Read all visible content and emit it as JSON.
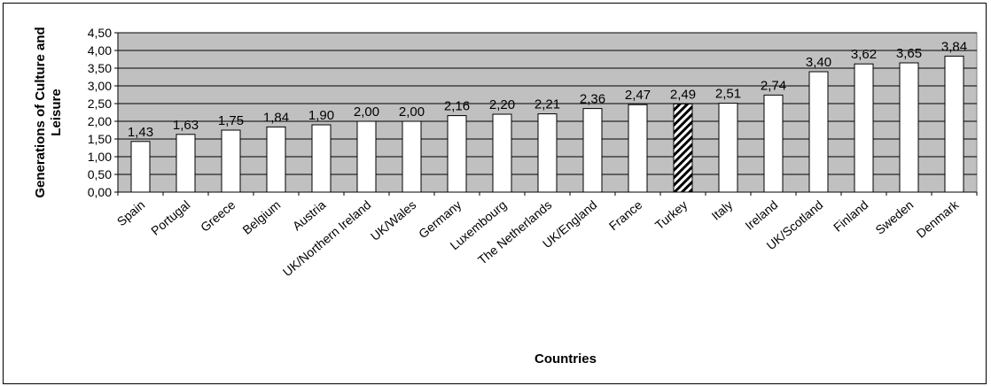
{
  "chart_data": {
    "type": "bar",
    "categories": [
      "Spain",
      "Portugal",
      "Greece",
      "Belgium",
      "Austria",
      "UK/Northern Ireland",
      "UK/Wales",
      "Germany",
      "Luxembourg",
      "The Netherlands",
      "UK/England",
      "France",
      "Turkey",
      "Italy",
      "Ireland",
      "UK/Scotland",
      "Finland",
      "Sweden",
      "Denmark"
    ],
    "values": [
      1.43,
      1.63,
      1.75,
      1.84,
      1.9,
      2.0,
      2.0,
      2.16,
      2.2,
      2.21,
      2.36,
      2.47,
      2.49,
      2.51,
      2.74,
      3.4,
      3.62,
      3.65,
      3.84
    ],
    "value_labels": [
      "1,43",
      "1,63",
      "1,75",
      "1,84",
      "1,90",
      "2,00",
      "2,00",
      "2,16",
      "2,20",
      "2,21",
      "2,36",
      "2,47",
      "2,49",
      "2,51",
      "2,74",
      "3,40",
      "3,62",
      "3,65",
      "3,84"
    ],
    "highlight_category": "Turkey",
    "highlight_pattern": "diagonal-hatch",
    "xlabel": "Countries",
    "ylabel": "Generations of Culture and Leisure",
    "ylim": [
      0,
      4.5
    ],
    "yticks": [
      0,
      0.5,
      1.0,
      1.5,
      2.0,
      2.5,
      3.0,
      3.5,
      4.0,
      4.5
    ],
    "ytick_labels": [
      "0,00",
      "0,50",
      "1,00",
      "1,50",
      "2,00",
      "2,50",
      "3,00",
      "3,50",
      "4,00",
      "4,50"
    ],
    "grid": true,
    "legend": false
  },
  "colors": {
    "plot_background": "#c0c0c0",
    "bar_fill": "#ffffff",
    "bar_stroke": "#000000",
    "gridline": "#000000"
  }
}
